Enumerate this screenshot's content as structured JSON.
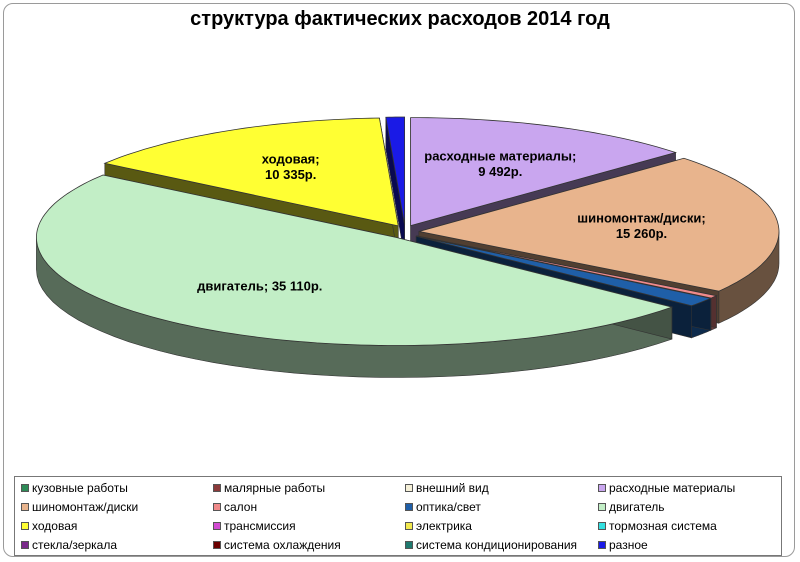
{
  "chart_data": {
    "type": "pie",
    "title": "структура фактических расходов 2014 год",
    "categories": [
      {
        "name": "кузовные работы",
        "value": 0,
        "color": "#2e8b57"
      },
      {
        "name": "малярные работы",
        "value": 0,
        "color": "#8b3a3a"
      },
      {
        "name": "внешний вид",
        "value": 0,
        "color": "#f5f0d8"
      },
      {
        "name": "расходные материалы",
        "value": 9492,
        "color": "#c9a6ef",
        "label": "расходные материалы; 9 492р."
      },
      {
        "name": "шиномонтаж/диски",
        "value": 15260,
        "color": "#e8b48d",
        "label": "шиномонтаж/диски; 15 260р."
      },
      {
        "name": "салон",
        "value": 300,
        "color": "#f08a8a"
      },
      {
        "name": "оптика/свет",
        "value": 1000,
        "color": "#1f5fa8"
      },
      {
        "name": "двигатель",
        "value": 35110,
        "color": "#c2eec6",
        "label": "двигатель; 35 110р."
      },
      {
        "name": "ходовая",
        "value": 10335,
        "color": "#ffff33",
        "label": "ходовая; 10 335р."
      },
      {
        "name": "трансмиссия",
        "value": 0,
        "color": "#d24ad2"
      },
      {
        "name": "электрика",
        "value": 0,
        "color": "#f2e94e"
      },
      {
        "name": "тормозная система",
        "value": 0,
        "color": "#33e0e0"
      },
      {
        "name": "стекла/зеркала",
        "value": 0,
        "color": "#7a2a8a"
      },
      {
        "name": "система охлаждения",
        "value": 0,
        "color": "#6b0000"
      },
      {
        "name": "система кондиционирования",
        "value": 0,
        "color": "#1f7a6f"
      },
      {
        "name": "разное",
        "value": 600,
        "color": "#1a1ae6"
      }
    ],
    "legend_position": "bottom"
  }
}
